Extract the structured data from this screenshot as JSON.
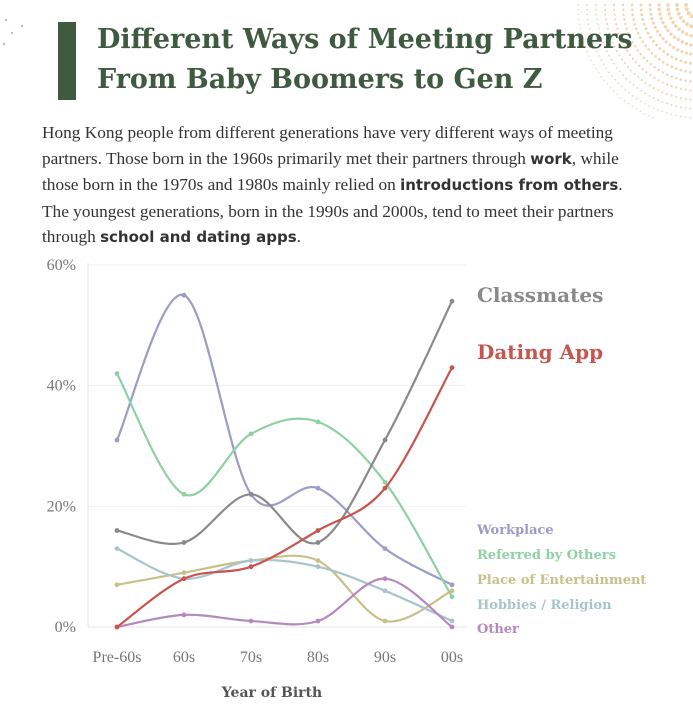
{
  "header": {
    "title_line1": "Different Ways of Meeting Partners",
    "title_line2": "From Baby Boomers to Gen Z"
  },
  "description": {
    "t1": "Hong Kong people from different generations have very different ways of meeting partners. Those born in the 1960s primarily met their partners through ",
    "b1": "work",
    "t2": ", while those born in the 1970s and 1980s mainly relied on ",
    "b2": "introductions from others",
    "t3": ". The youngest generations, born in the 1990s and 2000s, tend to meet their partners through ",
    "b3": "school and dating apps",
    "t4": "."
  },
  "colors": {
    "title": "#3f5a40",
    "accent_dots": "#f3d5b0",
    "grid": "#e6e6e6"
  },
  "chart_data": {
    "type": "line",
    "xlabel": "Year of Birth",
    "ylabel": "",
    "categories": [
      "Pre-60s",
      "60s",
      "70s",
      "80s",
      "90s",
      "00s"
    ],
    "y_ticks": [
      "0%",
      "20%",
      "40%",
      "60%"
    ],
    "ylim": [
      0,
      60
    ],
    "grid": true,
    "legend_position": "right",
    "series": [
      {
        "name": "Classmates",
        "color": "#8a8a8a",
        "values": [
          16,
          14,
          22,
          14,
          31,
          54
        ],
        "highlight": true
      },
      {
        "name": "Dating App",
        "color": "#c8544e",
        "values": [
          0,
          8,
          10,
          16,
          23,
          43
        ],
        "highlight": true
      },
      {
        "name": "Workplace",
        "color": "#9b9cc8",
        "values": [
          31,
          55,
          22,
          23,
          13,
          7
        ]
      },
      {
        "name": "Referred by Others",
        "color": "#8fd0a4",
        "values": [
          42,
          22,
          32,
          34,
          24,
          5
        ]
      },
      {
        "name": "Place of Entertainment",
        "color": "#c8c08a",
        "values": [
          7,
          9,
          11,
          11,
          1,
          6
        ]
      },
      {
        "name": "Hobbies / Religion",
        "color": "#a9c4cc",
        "values": [
          13,
          8,
          11,
          10,
          6,
          1
        ]
      },
      {
        "name": "Other",
        "color": "#b489bd",
        "values": [
          0,
          2,
          1,
          1,
          8,
          0
        ]
      }
    ]
  }
}
